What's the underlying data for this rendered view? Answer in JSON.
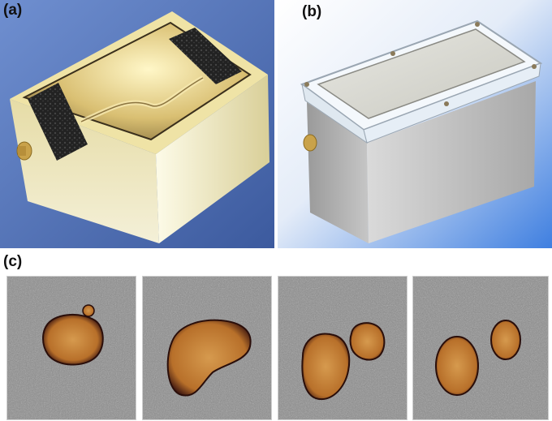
{
  "panels": {
    "a": {
      "label": "(a)",
      "background": "#5b7fc0"
    },
    "b": {
      "label": "(b)",
      "background": "#4a86e0"
    },
    "c": {
      "label": "(c)",
      "frame_count": 4
    }
  },
  "colors": {
    "label_text": "#111111",
    "phantom_orange": "#b8702a",
    "phantom_edge": "#3a1410",
    "noise_gray": "#8c8c8c"
  }
}
